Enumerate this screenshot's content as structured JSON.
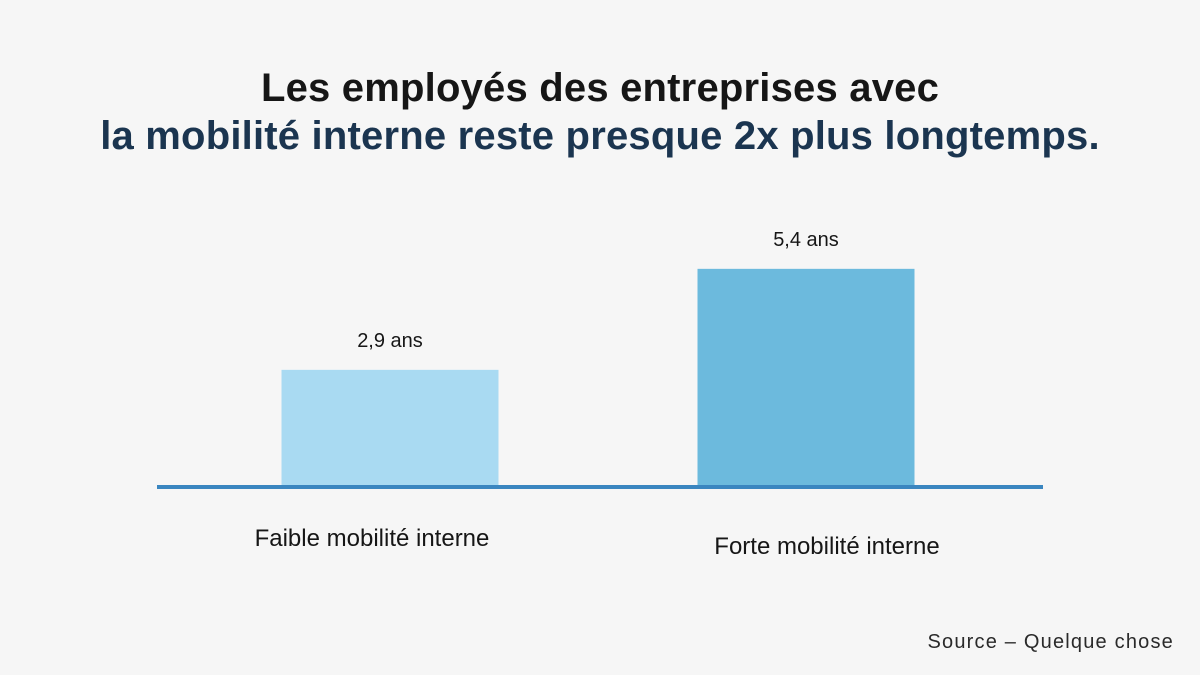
{
  "title": {
    "line1": "Les employés des entreprises avec",
    "line2": "la mobilité interne reste presque 2x plus longtemps."
  },
  "source": "Source – Quelque chose",
  "colors": {
    "background": "#f6f6f6",
    "bar_low": "#a9daf2",
    "bar_high": "#6cbadd",
    "baseline": "#3a86c0",
    "title_line1": "#161616",
    "title_line2": "#1b3550"
  },
  "chart_data": {
    "type": "bar",
    "categories": [
      "Faible mobilité interne",
      "Forte mobilité interne"
    ],
    "values": [
      2.9,
      5.4
    ],
    "value_labels": [
      "2,9 ans",
      "5,4 ans"
    ],
    "title": "Les employés des entreprises avec la mobilité interne reste presque 2x plus longtemps.",
    "xlabel": "",
    "ylabel": "",
    "ylim": [
      0,
      7
    ],
    "grid": false,
    "legend": "none",
    "bar_colors": [
      "#a9daf2",
      "#6cbadd"
    ]
  }
}
